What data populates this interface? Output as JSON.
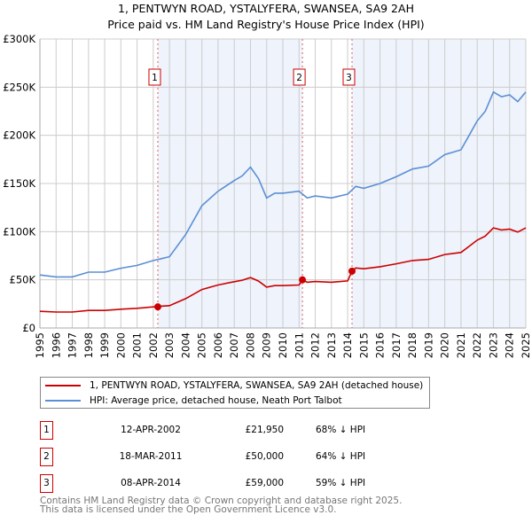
{
  "chart_data": {
    "type": "line",
    "title": "1, PENTWYN ROAD, YSTALYFERA, SWANSEA, SA9 2AH",
    "subtitle": "Price paid vs. HM Land Registry's House Price Index (HPI)",
    "xlim": [
      1995,
      2025
    ],
    "ylim": [
      0,
      300000
    ],
    "yticks": [
      {
        "v": 0,
        "label": "£0"
      },
      {
        "v": 50000,
        "label": "£50K"
      },
      {
        "v": 100000,
        "label": "£100K"
      },
      {
        "v": 150000,
        "label": "£150K"
      },
      {
        "v": 200000,
        "label": "£200K"
      },
      {
        "v": 250000,
        "label": "£250K"
      },
      {
        "v": 300000,
        "label": "£300K"
      }
    ],
    "xticks": [
      "1995",
      "1996",
      "1997",
      "1998",
      "1999",
      "2000",
      "2001",
      "2002",
      "2003",
      "2004",
      "2005",
      "2006",
      "2007",
      "2008",
      "2009",
      "2010",
      "2011",
      "2012",
      "2013",
      "2014",
      "2015",
      "2016",
      "2017",
      "2018",
      "2019",
      "2020",
      "2021",
      "2022",
      "2023",
      "2024",
      "2025"
    ],
    "grid": true,
    "series": [
      {
        "name": "1, PENTWYN ROAD, YSTALYFERA, SWANSEA, SA9 2AH (detached house)",
        "color": "#cc0000",
        "x": [
          1995,
          1996,
          1997,
          1998,
          1999,
          2000,
          2001,
          2002,
          2002.28,
          2002.5,
          2003,
          2004,
          2005,
          2006,
          2007,
          2007.5,
          2008,
          2008.5,
          2009,
          2009.5,
          2010,
          2011,
          2011.21,
          2011.5,
          2012,
          2013,
          2014,
          2014.27,
          2014.5,
          2015,
          2016,
          2017,
          2018,
          2019,
          2020,
          2021,
          2021.5,
          2022,
          2022.5,
          2023,
          2023.5,
          2024,
          2024.5,
          2025
        ],
        "y": [
          17300,
          16600,
          16600,
          18200,
          18200,
          19500,
          20400,
          21900,
          21950,
          22600,
          23200,
          30500,
          39900,
          44600,
          48000,
          49600,
          52400,
          48700,
          42400,
          44000,
          44000,
          44600,
          50000,
          47500,
          48200,
          47500,
          48900,
          59000,
          62300,
          61500,
          63600,
          66600,
          70000,
          71200,
          76300,
          78400,
          84800,
          91200,
          95400,
          103900,
          101800,
          102600,
          99600,
          103900
        ]
      },
      {
        "name": "HPI: Average price, detached house, Neath Port Talbot",
        "color": "#5b8fd4",
        "x": [
          1995,
          1996,
          1997,
          1998,
          1999,
          2000,
          2001,
          2002,
          2002.5,
          2003,
          2004,
          2005,
          2006,
          2007,
          2007.5,
          2008,
          2008.5,
          2009,
          2009.5,
          2010,
          2011,
          2011.5,
          2012,
          2013,
          2014,
          2014.5,
          2015,
          2016,
          2017,
          2018,
          2019,
          2020,
          2021,
          2021.5,
          2022,
          2022.5,
          2023,
          2023.5,
          2024,
          2024.5,
          2025
        ],
        "y": [
          55000,
          53000,
          53000,
          58000,
          58000,
          62000,
          65000,
          70000,
          72000,
          74000,
          97000,
          127000,
          142000,
          153000,
          158000,
          167000,
          155000,
          135000,
          140000,
          140000,
          142000,
          135000,
          137000,
          135000,
          139000,
          147000,
          145000,
          150000,
          157000,
          165000,
          168000,
          180000,
          185000,
          200000,
          215000,
          225000,
          245000,
          240000,
          242000,
          235000,
          245000
        ]
      }
    ],
    "sales": [
      {
        "label": "1",
        "x": 2002.28,
        "y": 21950,
        "date": "12-APR-2002",
        "price": "£21,950",
        "pct": "68% ↓ HPI"
      },
      {
        "label": "2",
        "x": 2011.21,
        "y": 50000,
        "date": "18-MAR-2011",
        "price": "£50,000",
        "pct": "64% ↓ HPI"
      },
      {
        "label": "3",
        "x": 2014.27,
        "y": 59000,
        "date": "08-APR-2014",
        "price": "£59,000",
        "pct": "59% ↓ HPI"
      }
    ],
    "shading_color": "#eef3fc",
    "legend_placement": "below"
  },
  "footer": {
    "line1": "Contains HM Land Registry data © Crown copyright and database right 2025.",
    "line2": "This data is licensed under the Open Government Licence v3.0."
  }
}
